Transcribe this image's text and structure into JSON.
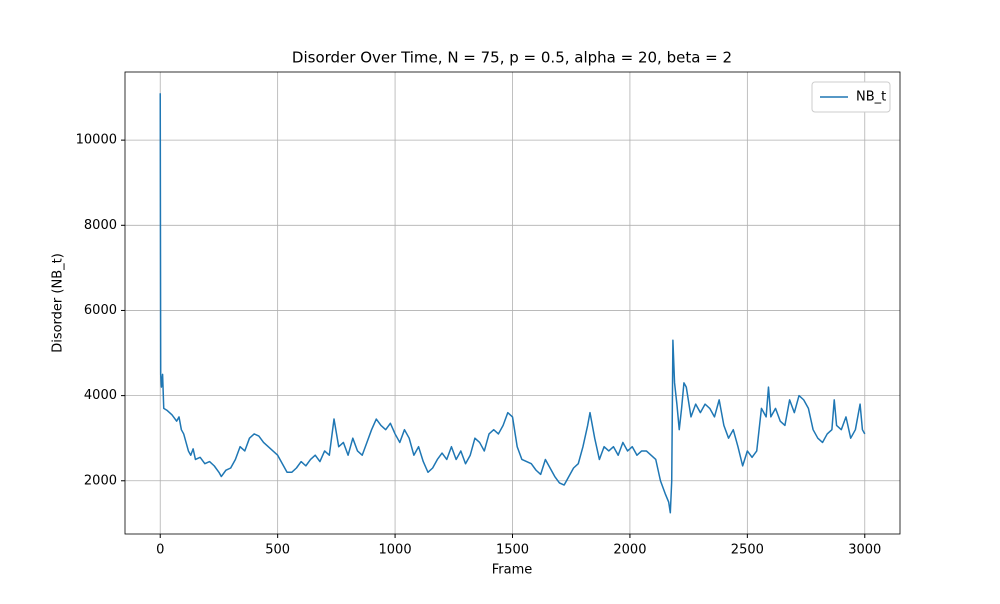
{
  "chart_data": {
    "type": "line",
    "title": "Disorder Over Time, N = 75, p = 0.5, alpha = 20, beta = 2",
    "x_label": "Frame",
    "y_label": "Disorder (NB_t)",
    "x": [
      0,
      2,
      5,
      10,
      15,
      30,
      50,
      70,
      80,
      90,
      100,
      110,
      120,
      130,
      140,
      150,
      170,
      190,
      210,
      230,
      250,
      260,
      280,
      300,
      320,
      340,
      360,
      380,
      400,
      420,
      440,
      460,
      480,
      500,
      520,
      540,
      560,
      580,
      600,
      620,
      640,
      660,
      680,
      700,
      720,
      740,
      760,
      780,
      800,
      820,
      840,
      860,
      880,
      900,
      920,
      940,
      960,
      980,
      1000,
      1020,
      1040,
      1060,
      1080,
      1100,
      1120,
      1140,
      1160,
      1180,
      1200,
      1220,
      1240,
      1260,
      1280,
      1300,
      1320,
      1340,
      1360,
      1380,
      1400,
      1420,
      1440,
      1460,
      1480,
      1500,
      1520,
      1540,
      1560,
      1580,
      1600,
      1620,
      1640,
      1660,
      1680,
      1700,
      1720,
      1740,
      1760,
      1780,
      1800,
      1820,
      1830,
      1850,
      1870,
      1890,
      1910,
      1930,
      1950,
      1970,
      1990,
      2010,
      2030,
      2050,
      2070,
      2090,
      2110,
      2130,
      2150,
      2165,
      2172,
      2178,
      2183,
      2190,
      2200,
      2210,
      2220,
      2230,
      2240,
      2260,
      2280,
      2300,
      2320,
      2340,
      2360,
      2380,
      2400,
      2420,
      2440,
      2460,
      2480,
      2500,
      2520,
      2540,
      2560,
      2580,
      2590,
      2600,
      2620,
      2640,
      2660,
      2680,
      2700,
      2720,
      2740,
      2760,
      2780,
      2800,
      2820,
      2840,
      2860,
      2870,
      2880,
      2900,
      2920,
      2940,
      2960,
      2980,
      2990,
      3000
    ],
    "series": [
      {
        "name": "NB_t",
        "color": "#1f77b4",
        "values": [
          11100,
          4500,
          4200,
          4500,
          3700,
          3650,
          3550,
          3400,
          3500,
          3200,
          3100,
          2900,
          2700,
          2600,
          2750,
          2500,
          2550,
          2400,
          2450,
          2350,
          2200,
          2100,
          2250,
          2300,
          2500,
          2800,
          2700,
          3000,
          3100,
          3050,
          2900,
          2800,
          2700,
          2600,
          2400,
          2200,
          2200,
          2300,
          2450,
          2350,
          2500,
          2600,
          2450,
          2700,
          2600,
          3450,
          2800,
          2900,
          2600,
          3000,
          2700,
          2600,
          2900,
          3200,
          3450,
          3300,
          3200,
          3350,
          3100,
          2900,
          3200,
          3000,
          2600,
          2800,
          2450,
          2200,
          2300,
          2500,
          2650,
          2500,
          2800,
          2500,
          2700,
          2400,
          2600,
          3000,
          2900,
          2700,
          3100,
          3200,
          3100,
          3300,
          3600,
          3500,
          2800,
          2500,
          2450,
          2400,
          2250,
          2150,
          2500,
          2300,
          2100,
          1950,
          1900,
          2100,
          2300,
          2400,
          2800,
          3300,
          3600,
          3000,
          2500,
          2800,
          2700,
          2800,
          2600,
          2900,
          2700,
          2800,
          2600,
          2700,
          2700,
          2600,
          2500,
          2000,
          1700,
          1500,
          1250,
          2000,
          5300,
          4300,
          3800,
          3200,
          3700,
          4300,
          4200,
          3500,
          3800,
          3600,
          3800,
          3700,
          3500,
          3900,
          3300,
          3000,
          3200,
          2800,
          2350,
          2700,
          2550,
          2700,
          3700,
          3500,
          4200,
          3500,
          3700,
          3400,
          3300,
          3900,
          3600,
          4000,
          3900,
          3700,
          3200,
          3000,
          2900,
          3100,
          3200,
          3900,
          3300,
          3200,
          3500,
          3000,
          3200,
          3800,
          3200,
          3100
        ]
      }
    ],
    "xlim": [
      -150,
      3150
    ],
    "ylim": [
      750,
      11600
    ],
    "xticks": [
      0,
      500,
      1000,
      1500,
      2000,
      2500,
      3000
    ],
    "yticks": [
      2000,
      4000,
      6000,
      8000,
      10000
    ],
    "grid": true,
    "legend": "upper right"
  }
}
